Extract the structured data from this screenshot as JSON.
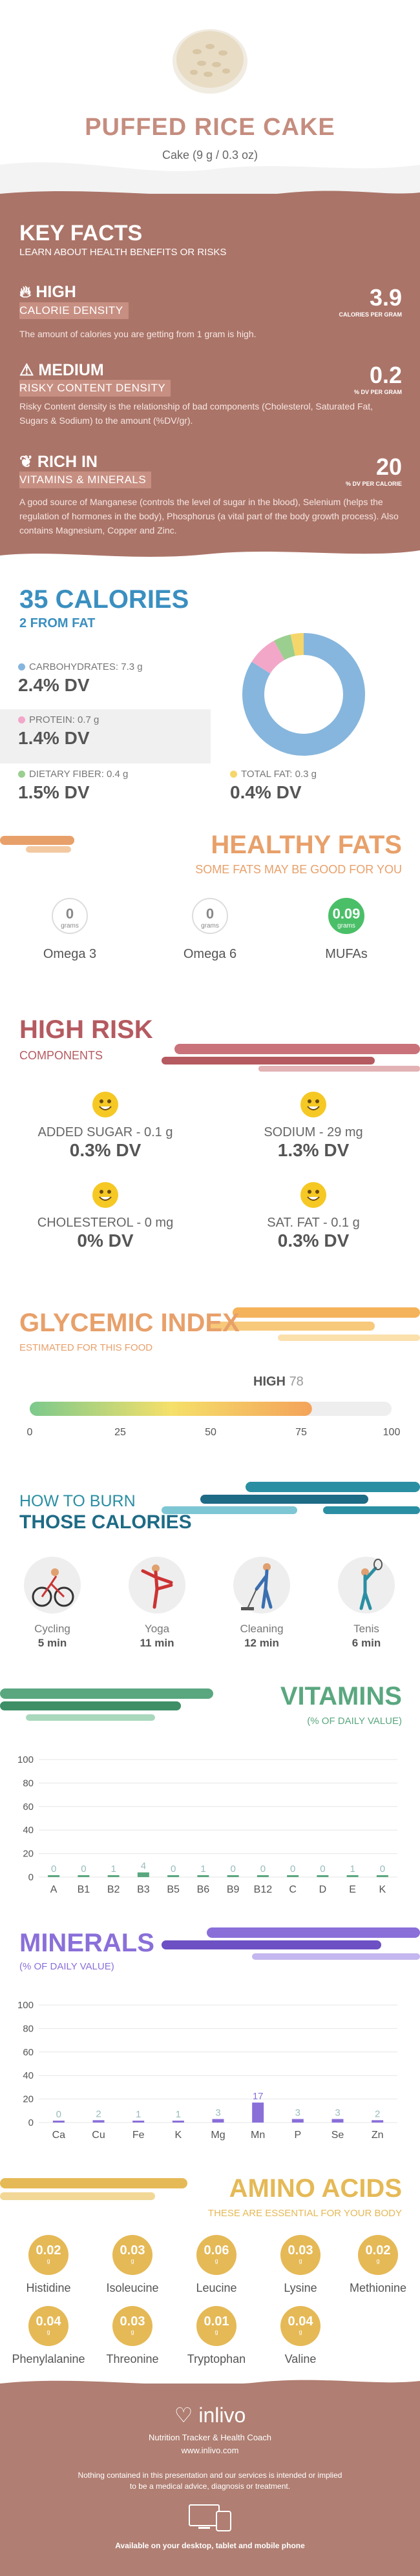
{
  "header": {
    "title": "PUFFED RICE CAKE",
    "subtitle": "Cake (9 g / 0.3 oz)"
  },
  "key_facts": {
    "title": "KEY FACTS",
    "lead": "LEARN ABOUT HEALTH BENEFITS OR RISKS",
    "items": [
      {
        "level": "HIGH",
        "name": "CALORIE DENSITY",
        "value": "3.9",
        "unit": "CALORIES PER GRAM",
        "desc": "The amount of calories you are getting from 1 gram is high."
      },
      {
        "level": "MEDIUM",
        "name": "RISKY CONTENT DENSITY",
        "value": "0.2",
        "unit": "% DV PER GRAM",
        "desc": "Risky Content density is the relationship of bad components (Cholesterol, Saturated Fat, Sugars & Sodium) to the amount (%DV/gr)."
      },
      {
        "level": "RICH  IN",
        "name": "VITAMINS & MINERALS",
        "value": "20",
        "unit": "% DV PER CALORIE",
        "desc": "A good source of Manganese (controls the level of sugar in the blood), Selenium (helps the regulation of hormones in the body), Phosphorus (a vital part of the body growth process). Also contains Magnesium, Copper and Zinc."
      }
    ]
  },
  "calories": {
    "title": "35 CALORIES",
    "subtitle": "2 FROM FAT",
    "macros": [
      {
        "label": "CARBOHYDRATES: 7.3 g",
        "dv": "2.4% DV",
        "color": "#86b6dd"
      },
      {
        "label": "PROTEIN: 0.7 g",
        "dv": "1.4% DV",
        "color": "#f2a7c8"
      },
      {
        "label": "DIETARY FIBER: 0.4 g",
        "dv": "1.5% DV",
        "color": "#9bcf8f"
      },
      {
        "label": "TOTAL FAT: 0.3 g",
        "dv": "0.4% DV",
        "color": "#f5d66b"
      }
    ]
  },
  "chart_data": [
    {
      "type": "pie",
      "title": "",
      "labels": [
        "Carbohydrates",
        "Protein",
        "Dietary fiber",
        "Total fat"
      ],
      "values": [
        7.3,
        0.7,
        0.4,
        0.3
      ],
      "colors": [
        "#86b6dd",
        "#f2a7c8",
        "#9bcf8f",
        "#f5d66b"
      ]
    },
    {
      "type": "bar",
      "title": "VITAMINS",
      "ylabel": "% OF DAILY VALUE",
      "categories": [
        "A",
        "B1",
        "B2",
        "B3",
        "B5",
        "B6",
        "B9",
        "B12",
        "C",
        "D",
        "E",
        "K"
      ],
      "values": [
        0,
        0,
        1,
        4,
        0,
        1,
        0,
        0,
        0,
        0,
        1,
        0
      ],
      "yticks": [
        0,
        20,
        40,
        60,
        80,
        100
      ],
      "ylim": [
        0,
        100
      ],
      "color": "#5aa77f"
    },
    {
      "type": "bar",
      "title": "MINERALS",
      "ylabel": "% OF DAILY VALUE",
      "categories": [
        "Ca",
        "Cu",
        "Fe",
        "K",
        "Mg",
        "Mn",
        "P",
        "Se",
        "Zn"
      ],
      "values": [
        0,
        2,
        1,
        1,
        3,
        17,
        3,
        3,
        2
      ],
      "yticks": [
        0,
        20,
        40,
        60,
        80,
        100
      ],
      "ylim": [
        0,
        100
      ],
      "color": "#8a6fd9"
    }
  ],
  "healthy_fats": {
    "title": "HEALTHY FATS",
    "subtitle": "SOME FATS MAY BE GOOD FOR YOU",
    "items": [
      {
        "value": "0",
        "unit": "grams",
        "label": "Omega 3"
      },
      {
        "value": "0",
        "unit": "grams",
        "label": "Omega 6"
      },
      {
        "value": "0.09",
        "unit": "grams",
        "label": "MUFAs"
      }
    ]
  },
  "high_risk": {
    "title": "HIGH RISK",
    "subtitle": "COMPONENTS",
    "items": [
      {
        "label": "ADDED SUGAR - 0.1 g",
        "dv": "0.3% DV"
      },
      {
        "label": "SODIUM - 29 mg",
        "dv": "1.3% DV"
      },
      {
        "label": "CHOLESTEROL - 0 mg",
        "dv": "0% DV"
      },
      {
        "label": "SAT. FAT - 0.1 g",
        "dv": "0.3% DV"
      }
    ]
  },
  "glycemic": {
    "title": "GLYCEMIC INDEX",
    "subtitle": "ESTIMATED FOR THIS FOOD",
    "level": "HIGH",
    "value": 78,
    "value_text": "78",
    "ticks": [
      "0",
      "25",
      "50",
      "75",
      "100"
    ]
  },
  "burn": {
    "title1": "HOW TO BURN",
    "title2": "THOSE CALORIES",
    "items": [
      {
        "name": "Cycling",
        "time": "5 min"
      },
      {
        "name": "Yoga",
        "time": "11 min"
      },
      {
        "name": "Cleaning",
        "time": "12 min"
      },
      {
        "name": "Tenis",
        "time": "6 min"
      }
    ]
  },
  "vitamins": {
    "title": "VITAMINS",
    "subtitle": "(% OF DAILY VALUE)"
  },
  "minerals": {
    "title": "MINERALS",
    "subtitle": "(% OF DAILY VALUE)"
  },
  "amino": {
    "title": "AMINO ACIDS",
    "subtitle": "THESE ARE ESSENTIAL FOR YOUR BODY",
    "unit": "g",
    "items": [
      {
        "value": "0.02",
        "name": "Histidine"
      },
      {
        "value": "0.03",
        "name": "Isoleucine"
      },
      {
        "value": "0.06",
        "name": "Leucine"
      },
      {
        "value": "0.03",
        "name": "Lysine"
      },
      {
        "value": "0.02",
        "name": "Methionine"
      },
      {
        "value": "0.04",
        "name": "Phenylalanine"
      },
      {
        "value": "0.03",
        "name": "Threonine"
      },
      {
        "value": "0.01",
        "name": "Tryptophan"
      },
      {
        "value": "0.04",
        "name": "Valine"
      }
    ]
  },
  "footer": {
    "brand": "inlivo",
    "tagline": "Nutrition Tracker & Health Coach",
    "url": "www.inlivo.com",
    "disclaimer": "Nothing contained in this presentation and our services is intended or implied to be a medical advice, diagnosis or treatment.",
    "available": "Available on your desktop, tablet and mobile phone"
  },
  "colors": {
    "rose": "#c58d7f",
    "brown": "#ab7468",
    "blue": "#3a8fc0",
    "risk": "#b55a60",
    "orange": "#e8a06a",
    "teal": "#2b8fa3",
    "green": "#5aa77f",
    "purple": "#8a6fd9",
    "gold": "#e5b956"
  }
}
